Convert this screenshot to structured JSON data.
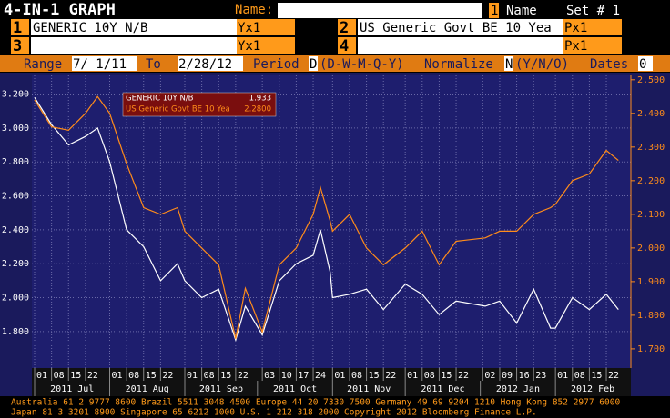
{
  "header": {
    "title": "4-IN-1 GRAPH",
    "name_label": "Name:",
    "slot": "1",
    "name_text": "Name",
    "set": "Set # 1"
  },
  "rows": [
    {
      "n1": "1",
      "f1": "GENERIC 10Y N/B",
      "t1": "Yx1",
      "n2": "2",
      "f2": "US Generic Govt BE 10 Yea",
      "t2": "Px1"
    },
    {
      "n1": "3",
      "f1": "",
      "t1": "Yx1",
      "n2": "4",
      "f2": "",
      "t2": "Px1"
    }
  ],
  "range": {
    "label": "Range",
    "from": "7/ 1/11",
    "to_label": "To",
    "to": "2/28/12",
    "period_label": "Period",
    "period": "D",
    "period_opts": "(D-W-M-Q-Y)",
    "normalize_label": "Normalize",
    "normalize": "N",
    "normalize_opts": "(Y/N/O)",
    "dates_label": "Dates",
    "dates": "0"
  },
  "footer": [
    "Australia 61 2 9777 8600 Brazil 5511 3048 4500 Europe 44 20 7330 7500 Germany 49 69 9204 1210 Hong Kong 852 2977 6000",
    "Japan 81 3 3201 8900         Singapore 65 6212 1000        U.S. 1 212 318 2000        Copyright 2012 Bloomberg Finance L.P."
  ],
  "chart_data": {
    "type": "line",
    "x": [
      "2011-07-01",
      "2011-07-08",
      "2011-07-15",
      "2011-07-22",
      "2011-07-27",
      "2011-08-01",
      "2011-08-08",
      "2011-08-15",
      "2011-08-22",
      "2011-08-29",
      "2011-09-01",
      "2011-09-08",
      "2011-09-15",
      "2011-09-22",
      "2011-09-26",
      "2011-10-03",
      "2011-10-10",
      "2011-10-17",
      "2011-10-24",
      "2011-10-27",
      "2011-10-31",
      "2011-11-01",
      "2011-11-08",
      "2011-11-15",
      "2011-11-22",
      "2011-12-01",
      "2011-12-08",
      "2011-12-15",
      "2011-12-22",
      "2012-01-03",
      "2012-01-09",
      "2012-01-16",
      "2012-01-23",
      "2012-01-30",
      "2012-02-01",
      "2012-02-08",
      "2012-02-15",
      "2012-02-22",
      "2012-02-27"
    ],
    "series": [
      {
        "name": "GENERIC 10Y N/B",
        "legend_value": "1.933",
        "color": "#ffffff",
        "axis": "y",
        "values": [
          3.18,
          3.02,
          2.9,
          2.95,
          3.0,
          2.8,
          2.4,
          2.3,
          2.1,
          2.2,
          2.1,
          2.0,
          2.05,
          1.75,
          1.95,
          1.78,
          2.1,
          2.2,
          2.25,
          2.4,
          2.15,
          2.0,
          2.02,
          2.05,
          1.93,
          2.08,
          2.02,
          1.9,
          1.98,
          1.95,
          1.98,
          1.85,
          2.05,
          1.82,
          1.82,
          2.0,
          1.93,
          2.02,
          1.93
        ]
      },
      {
        "name": "US Generic Govt BE 10 Yea",
        "legend_value": "2.2800",
        "color": "#ff8c1a",
        "axis": "y2",
        "values": [
          2.44,
          2.36,
          2.35,
          2.4,
          2.45,
          2.4,
          2.25,
          2.12,
          2.1,
          2.12,
          2.05,
          2.0,
          1.95,
          1.73,
          1.88,
          1.75,
          1.95,
          2.0,
          2.1,
          2.18,
          2.08,
          2.05,
          2.1,
          2.0,
          1.95,
          2.0,
          2.05,
          1.95,
          2.02,
          2.03,
          2.05,
          2.05,
          2.1,
          2.12,
          2.13,
          2.2,
          2.22,
          2.29,
          2.26
        ]
      }
    ],
    "xlim": [
      "2011-07-01",
      "2012-02-28"
    ],
    "xticks": [
      {
        "value": "2011-07-01",
        "label": "01"
      },
      {
        "value": "2011-07-08",
        "label": "08"
      },
      {
        "value": "2011-07-15",
        "label": "15"
      },
      {
        "value": "2011-07-22",
        "label": "22"
      },
      {
        "value": "2011-08-01",
        "label": "01"
      },
      {
        "value": "2011-08-08",
        "label": "08"
      },
      {
        "value": "2011-08-15",
        "label": "15"
      },
      {
        "value": "2011-08-22",
        "label": "22"
      },
      {
        "value": "2011-09-01",
        "label": "01"
      },
      {
        "value": "2011-09-08",
        "label": "08"
      },
      {
        "value": "2011-09-15",
        "label": "15"
      },
      {
        "value": "2011-09-22",
        "label": "22"
      },
      {
        "value": "2011-10-03",
        "label": "03"
      },
      {
        "value": "2011-10-10",
        "label": "10"
      },
      {
        "value": "2011-10-17",
        "label": "17"
      },
      {
        "value": "2011-10-24",
        "label": "24"
      },
      {
        "value": "2011-11-01",
        "label": "01"
      },
      {
        "value": "2011-11-08",
        "label": "08"
      },
      {
        "value": "2011-11-15",
        "label": "15"
      },
      {
        "value": "2011-11-22",
        "label": "22"
      },
      {
        "value": "2011-12-01",
        "label": "01"
      },
      {
        "value": "2011-12-08",
        "label": "08"
      },
      {
        "value": "2011-12-15",
        "label": "15"
      },
      {
        "value": "2011-12-22",
        "label": "22"
      },
      {
        "value": "2012-01-02",
        "label": "02"
      },
      {
        "value": "2012-01-09",
        "label": "09"
      },
      {
        "value": "2012-01-16",
        "label": "16"
      },
      {
        "value": "2012-01-23",
        "label": "23"
      },
      {
        "value": "2012-02-01",
        "label": "01"
      },
      {
        "value": "2012-02-08",
        "label": "08"
      },
      {
        "value": "2012-02-15",
        "label": "15"
      },
      {
        "value": "2012-02-22",
        "label": "22"
      }
    ],
    "months": [
      {
        "value": "2011-07-01",
        "label": "2011 Jul"
      },
      {
        "value": "2011-08-01",
        "label": "2011 Aug"
      },
      {
        "value": "2011-09-01",
        "label": "2011 Sep"
      },
      {
        "value": "2011-10-01",
        "label": "2011 Oct"
      },
      {
        "value": "2011-11-01",
        "label": "2011 Nov"
      },
      {
        "value": "2011-12-01",
        "label": "2011 Dec"
      },
      {
        "value": "2012-01-01",
        "label": "2012 Jan"
      },
      {
        "value": "2012-02-01",
        "label": "2012 Feb"
      }
    ],
    "ylim": [
      1.585,
      3.31
    ],
    "yticks": [
      {
        "value": 1.8,
        "label": "1.800"
      },
      {
        "value": 2.0,
        "label": "2.000"
      },
      {
        "value": 2.2,
        "label": "2.200"
      },
      {
        "value": 2.4,
        "label": "2.400"
      },
      {
        "value": 2.6,
        "label": "2.600"
      },
      {
        "value": 2.8,
        "label": "2.800"
      },
      {
        "value": 3.0,
        "label": "3.000"
      },
      {
        "value": 3.2,
        "label": "3.200"
      }
    ],
    "y2lim": [
      1.643,
      2.513
    ],
    "y2ticks": [
      {
        "value": 1.7,
        "label": "1.700"
      },
      {
        "value": 1.8,
        "label": "1.800"
      },
      {
        "value": 1.9,
        "label": "1.900"
      },
      {
        "value": 2.0,
        "label": "2.000"
      },
      {
        "value": 2.1,
        "label": "2.100"
      },
      {
        "value": 2.2,
        "label": "2.200"
      },
      {
        "value": 2.3,
        "label": "2.300"
      },
      {
        "value": 2.4,
        "label": "2.400"
      },
      {
        "value": 2.5,
        "label": "2.500"
      }
    ],
    "grid": true
  }
}
